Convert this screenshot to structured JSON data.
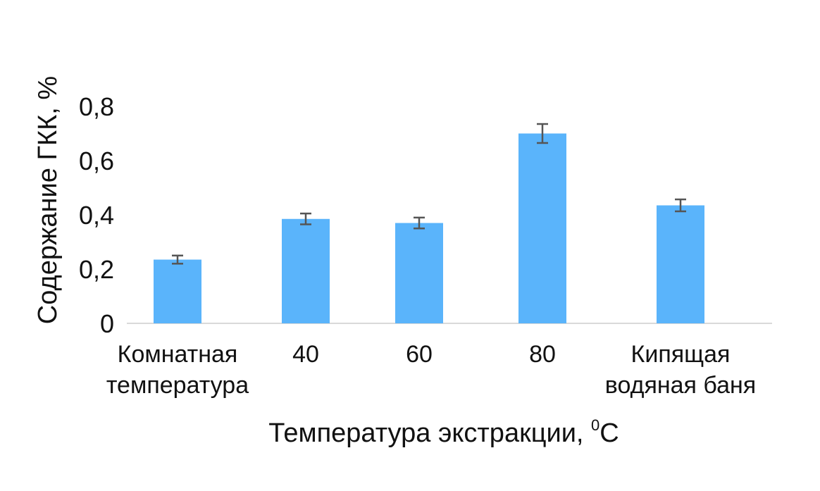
{
  "chart_data": {
    "type": "bar",
    "categories": [
      [
        "Комнатная",
        "температура"
      ],
      [
        "40"
      ],
      [
        "60"
      ],
      [
        "80"
      ],
      [
        "Кипящая",
        "водяная баня"
      ]
    ],
    "values": [
      0.235,
      0.385,
      0.37,
      0.7,
      0.435
    ],
    "errors": [
      0.015,
      0.02,
      0.02,
      0.035,
      0.022
    ],
    "xlabel": "Температура экстракции, ",
    "xlabel_sup": "0",
    "xlabel_unit": "С",
    "ylabel": "Содержание ГКК, %",
    "ylim": [
      0,
      0.8
    ],
    "yticks": [
      "0",
      "0,2",
      "0,4",
      "0,6",
      "0,8"
    ],
    "ytick_values": [
      0,
      0.2,
      0.4,
      0.6,
      0.8
    ],
    "grid": false,
    "colors": {
      "bar": "#5AB4FB",
      "error_bar": "#555555",
      "axis": "#D9D9D9"
    }
  }
}
